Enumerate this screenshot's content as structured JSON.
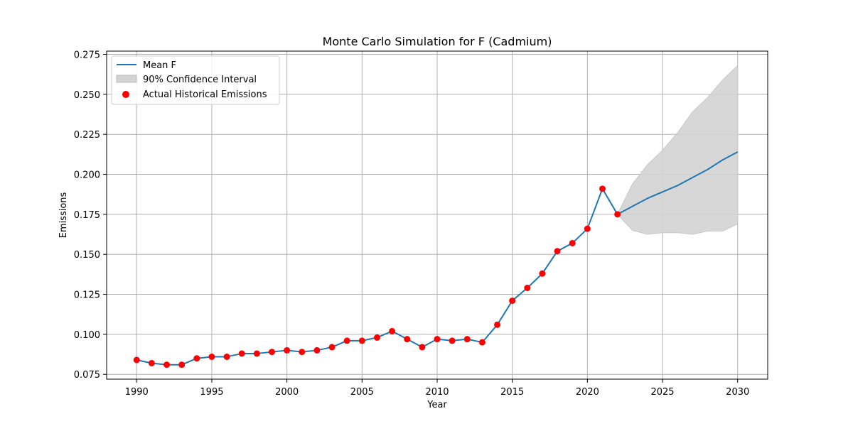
{
  "chart_data": {
    "type": "line",
    "title": "Monte Carlo Simulation for F (Cadmium)",
    "xlabel": "Year",
    "ylabel": "Emissions",
    "xlim": [
      1988,
      2032
    ],
    "ylim": [
      0.072,
      0.277
    ],
    "x_ticks": [
      1990,
      1995,
      2000,
      2005,
      2010,
      2015,
      2020,
      2025,
      2030
    ],
    "y_ticks": [
      0.075,
      0.1,
      0.125,
      0.15,
      0.175,
      0.2,
      0.225,
      0.25,
      0.275
    ],
    "x_tick_labels": [
      "1990",
      "1995",
      "2000",
      "2005",
      "2010",
      "2015",
      "2020",
      "2025",
      "2030"
    ],
    "y_tick_labels": [
      "0.075",
      "0.100",
      "0.125",
      "0.150",
      "0.175",
      "0.200",
      "0.225",
      "0.250",
      "0.275"
    ],
    "grid": true,
    "legend_position": "top-left",
    "colors": {
      "mean": "#1f77b4",
      "ci": "#d3d3d3",
      "actual": "#ff0000"
    },
    "series": [
      {
        "name": "Mean F",
        "type": "line",
        "x": [
          1990,
          1991,
          1992,
          1993,
          1994,
          1995,
          1996,
          1997,
          1998,
          1999,
          2000,
          2001,
          2002,
          2003,
          2004,
          2005,
          2006,
          2007,
          2008,
          2009,
          2010,
          2011,
          2012,
          2013,
          2014,
          2015,
          2016,
          2017,
          2018,
          2019,
          2020,
          2021,
          2022,
          2023,
          2024,
          2025,
          2026,
          2027,
          2028,
          2029,
          2030
        ],
        "y": [
          0.084,
          0.082,
          0.081,
          0.081,
          0.085,
          0.086,
          0.086,
          0.088,
          0.088,
          0.089,
          0.09,
          0.089,
          0.09,
          0.092,
          0.096,
          0.096,
          0.098,
          0.102,
          0.097,
          0.092,
          0.097,
          0.096,
          0.097,
          0.095,
          0.106,
          0.121,
          0.129,
          0.138,
          0.152,
          0.157,
          0.166,
          0.191,
          0.175,
          0.18,
          0.185,
          0.189,
          0.193,
          0.198,
          0.203,
          0.209,
          0.214
        ]
      },
      {
        "name": "90% Confidence Interval",
        "type": "area",
        "x": [
          2022,
          2023,
          2024,
          2025,
          2026,
          2027,
          2028,
          2029,
          2030
        ],
        "lower": [
          0.175,
          0.165,
          0.1625,
          0.1635,
          0.1635,
          0.1625,
          0.1645,
          0.1645,
          0.169
        ],
        "upper": [
          0.175,
          0.194,
          0.206,
          0.215,
          0.226,
          0.239,
          0.248,
          0.259,
          0.268
        ]
      },
      {
        "name": "Actual Historical Emissions",
        "type": "scatter",
        "x": [
          1990,
          1991,
          1992,
          1993,
          1994,
          1995,
          1996,
          1997,
          1998,
          1999,
          2000,
          2001,
          2002,
          2003,
          2004,
          2005,
          2006,
          2007,
          2008,
          2009,
          2010,
          2011,
          2012,
          2013,
          2014,
          2015,
          2016,
          2017,
          2018,
          2019,
          2020,
          2021,
          2022
        ],
        "y": [
          0.084,
          0.082,
          0.081,
          0.081,
          0.085,
          0.086,
          0.086,
          0.088,
          0.088,
          0.089,
          0.09,
          0.089,
          0.09,
          0.092,
          0.096,
          0.096,
          0.098,
          0.102,
          0.097,
          0.092,
          0.097,
          0.096,
          0.097,
          0.095,
          0.106,
          0.121,
          0.129,
          0.138,
          0.152,
          0.157,
          0.166,
          0.191,
          0.175
        ]
      }
    ]
  }
}
